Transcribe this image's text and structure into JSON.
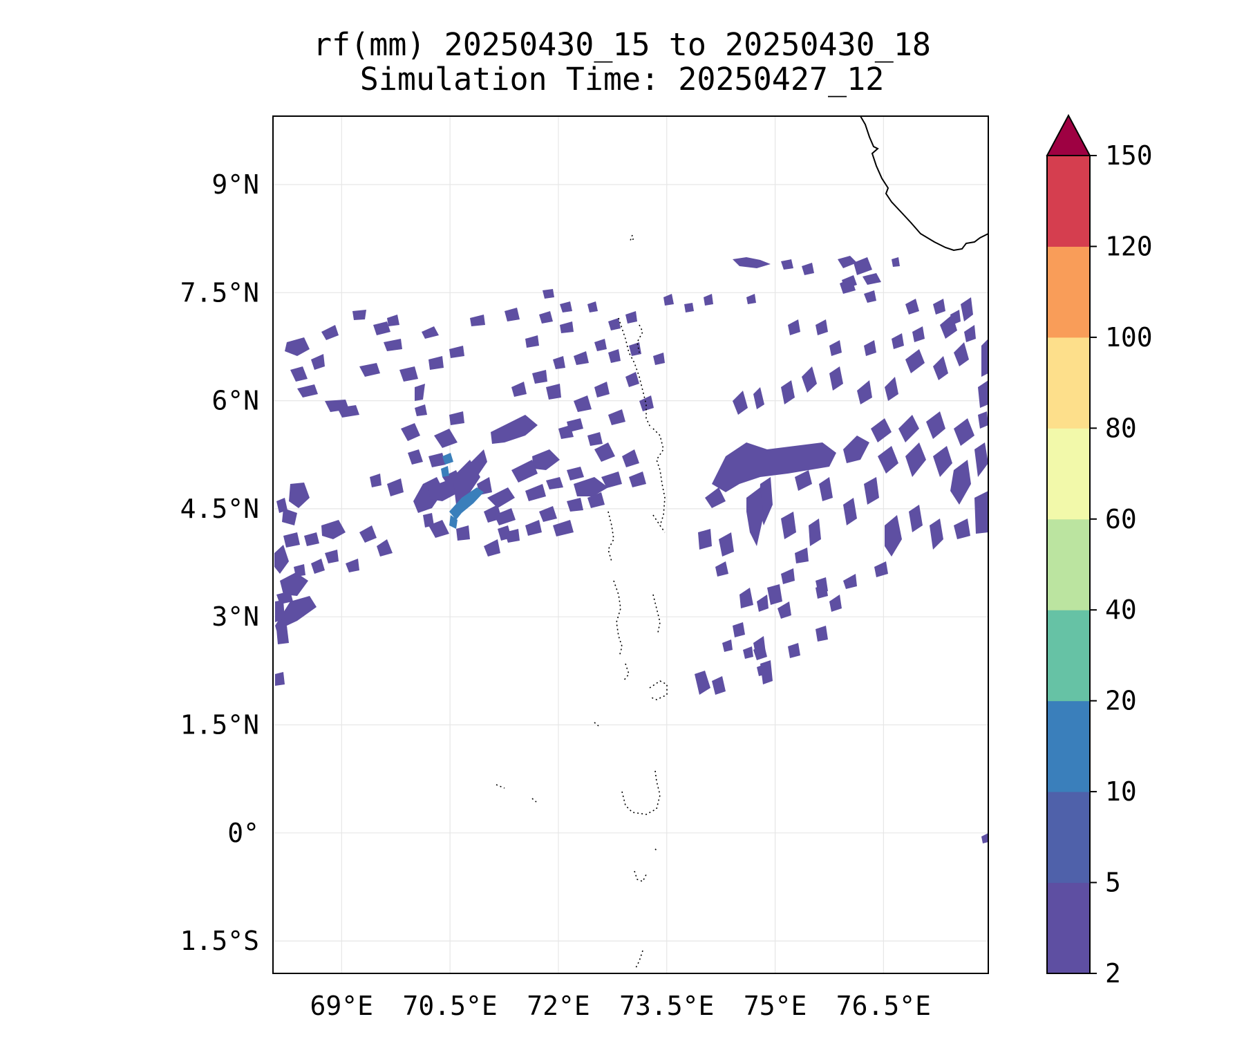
{
  "title": "rf(mm) 20250430_15 to 20250430_18",
  "subtitle": "Simulation Time: 20250427_12",
  "map": {
    "lon_ticks": [
      {
        "value": 69.0,
        "label": "69°E"
      },
      {
        "value": 70.5,
        "label": "70.5°E"
      },
      {
        "value": 72.0,
        "label": "72°E"
      },
      {
        "value": 73.5,
        "label": "73.5°E"
      },
      {
        "value": 75.0,
        "label": "75°E"
      },
      {
        "value": 76.5,
        "label": "76.5°E"
      }
    ],
    "lat_ticks": [
      {
        "value": 9.0,
        "label": "9°N"
      },
      {
        "value": 7.5,
        "label": "7.5°N"
      },
      {
        "value": 6.0,
        "label": "6°N"
      },
      {
        "value": 4.5,
        "label": "4.5°N"
      },
      {
        "value": 3.0,
        "label": "3°N"
      },
      {
        "value": 1.5,
        "label": "1.5°N"
      },
      {
        "value": 0.0,
        "label": "0°"
      },
      {
        "value": -1.5,
        "label": "1.5°S"
      }
    ],
    "gridlines": true,
    "lon_range": [
      68.05,
      77.95
    ],
    "lat_range": [
      -1.95,
      9.95
    ]
  },
  "colorbar": {
    "levels": [
      "2",
      "5",
      "10",
      "20",
      "40",
      "60",
      "80",
      "100",
      "120",
      "150"
    ],
    "colors": [
      "#5e4fa2",
      "#4f61aa",
      "#3a7fbb",
      "#66c2a5",
      "#bbe4a0",
      "#f2f9aa",
      "#fddf8b",
      "#f99d59",
      "#d53e4f"
    ],
    "extend_color": "#9e0142",
    "extend": "max"
  }
}
